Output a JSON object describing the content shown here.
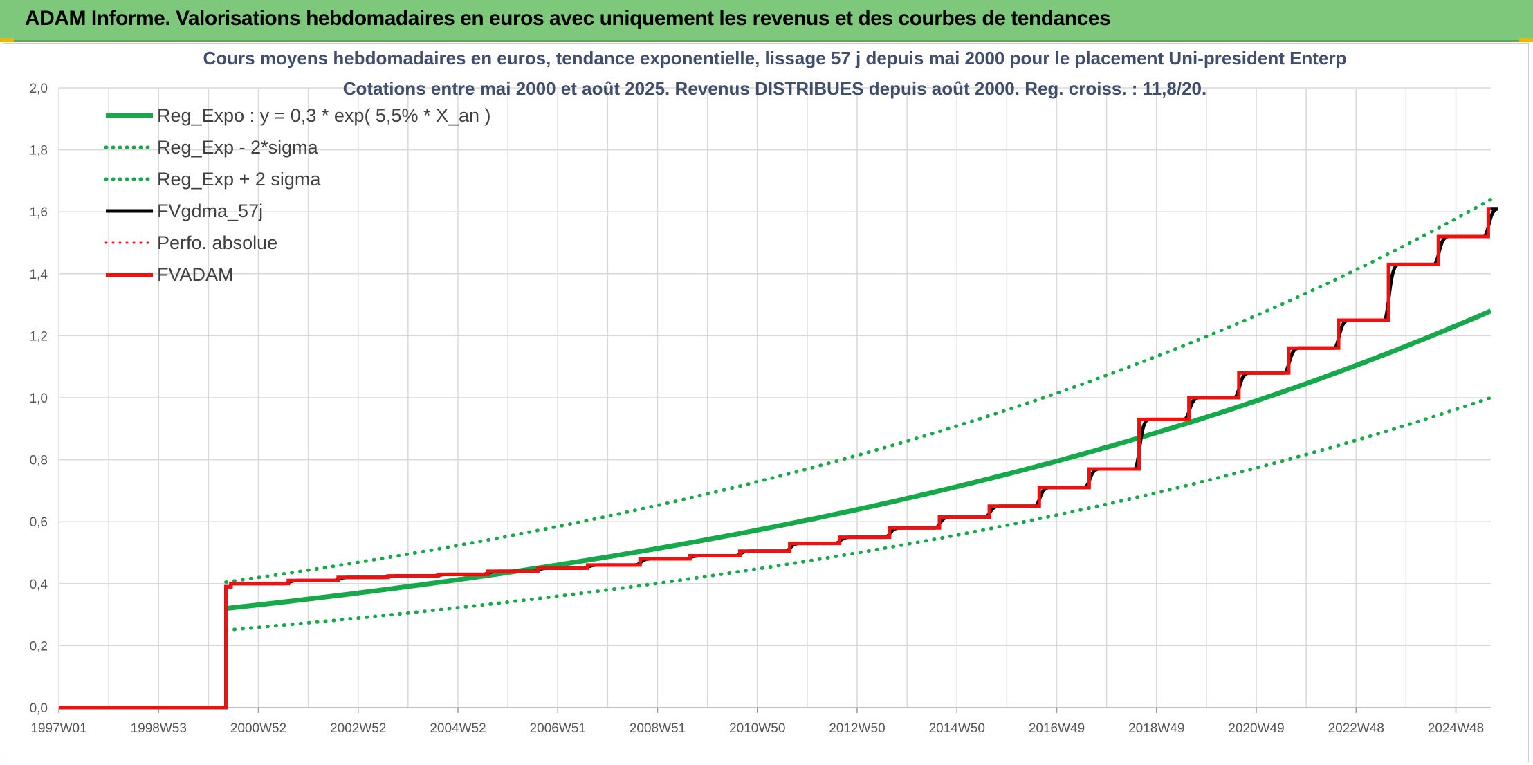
{
  "header": {
    "title": "ADAM Informe. Valorisations hebdomadaires en euros avec uniquement les revenus et des courbes de tendances"
  },
  "colors": {
    "header_bg": "#7dc87b",
    "green": "#16a84a",
    "red": "#ee1111",
    "black": "#000000",
    "grid": "#d9d9d9"
  },
  "chart_data": {
    "type": "line",
    "title_line1": "Cours moyens hebdomadaires en euros, tendance exponentielle, lissage 57 j depuis mai 2000 pour le placement Uni-president Enterp",
    "title_line2": "Cotations entre mai 2000 et août 2025. Revenus DISTRIBUES depuis août 2000. Reg. croiss. : 11,8/20.",
    "xlabel": "",
    "ylabel": "",
    "ylim": [
      0,
      2.0
    ],
    "yticks": [
      "0,0",
      "0,2",
      "0,4",
      "0,6",
      "0,8",
      "1,0",
      "1,2",
      "1,4",
      "1,6",
      "1,8",
      "2,0"
    ],
    "xlim": [
      1997.0,
      2025.7
    ],
    "xtick_labels": [
      "1997W01",
      "1998W53",
      "2000W52",
      "2002W52",
      "2004W52",
      "2006W51",
      "2008W51",
      "2010W50",
      "2012W50",
      "2014W50",
      "2016W49",
      "2018W49",
      "2020W49",
      "2022W48",
      "2024W48"
    ],
    "xtick_years": [
      1997.0,
      1999.0,
      2001.0,
      2003.0,
      2005.0,
      2007.0,
      2009.0,
      2011.0,
      2013.0,
      2015.0,
      2017.0,
      2019.0,
      2021.0,
      2023.0,
      2025.0
    ],
    "grid": true,
    "legend_position": "top-left",
    "legend": [
      {
        "label": "Reg_Expo : y = 0,3 * exp( 5,5% *  X_an )",
        "color": "#16a84a",
        "style": "solid",
        "width": 7
      },
      {
        "label": "Reg_Exp - 2*sigma",
        "color": "#16a84a",
        "style": "dotted",
        "width": 5
      },
      {
        "label": "Reg_Exp + 2 sigma",
        "color": "#16a84a",
        "style": "dotted",
        "width": 5
      },
      {
        "label": "FVgdma_57j",
        "color": "#000000",
        "style": "solid",
        "width": 5
      },
      {
        "label": "Perfo. absolue",
        "color": "#ee1111",
        "style": "dotted",
        "width": 3
      },
      {
        "label": "FVADAM",
        "color": "#ee1111",
        "style": "solid",
        "width": 6
      }
    ],
    "series": [
      {
        "name": "Reg_Expo : y = 0,3 * exp( 5,5% *  X_an )",
        "x_range": [
          2000.35,
          2025.7
        ],
        "y_start": 0.32,
        "y_end": 1.28
      },
      {
        "name": "Reg_Exp - 2*sigma",
        "x_range": [
          2000.35,
          2025.7
        ],
        "y_start": 0.25,
        "y_end": 1.0
      },
      {
        "name": "Reg_Exp + 2 sigma",
        "x_range": [
          2000.35,
          2025.7
        ],
        "y_start": 0.405,
        "y_end": 1.64
      },
      {
        "name": "FVADAM",
        "start_value": 0.0,
        "start_x": 1997.0,
        "steps": [
          [
            2000.35,
            0.39
          ],
          [
            2000.45,
            0.4
          ],
          [
            2001.6,
            0.41
          ],
          [
            2002.6,
            0.42
          ],
          [
            2003.6,
            0.425
          ],
          [
            2004.6,
            0.43
          ],
          [
            2005.6,
            0.44
          ],
          [
            2006.6,
            0.45
          ],
          [
            2007.6,
            0.46
          ],
          [
            2008.65,
            0.48
          ],
          [
            2009.65,
            0.49
          ],
          [
            2010.65,
            0.505
          ],
          [
            2011.65,
            0.53
          ],
          [
            2012.65,
            0.55
          ],
          [
            2013.65,
            0.58
          ],
          [
            2014.65,
            0.615
          ],
          [
            2015.65,
            0.65
          ],
          [
            2016.65,
            0.71
          ],
          [
            2017.65,
            0.77
          ],
          [
            2018.65,
            0.93
          ],
          [
            2019.65,
            1.0
          ],
          [
            2020.65,
            1.08
          ],
          [
            2021.65,
            1.16
          ],
          [
            2022.65,
            1.25
          ],
          [
            2023.65,
            1.43
          ],
          [
            2024.65,
            1.52
          ],
          [
            2025.65,
            1.61
          ]
        ],
        "end_x": 2025.7
      }
    ]
  }
}
